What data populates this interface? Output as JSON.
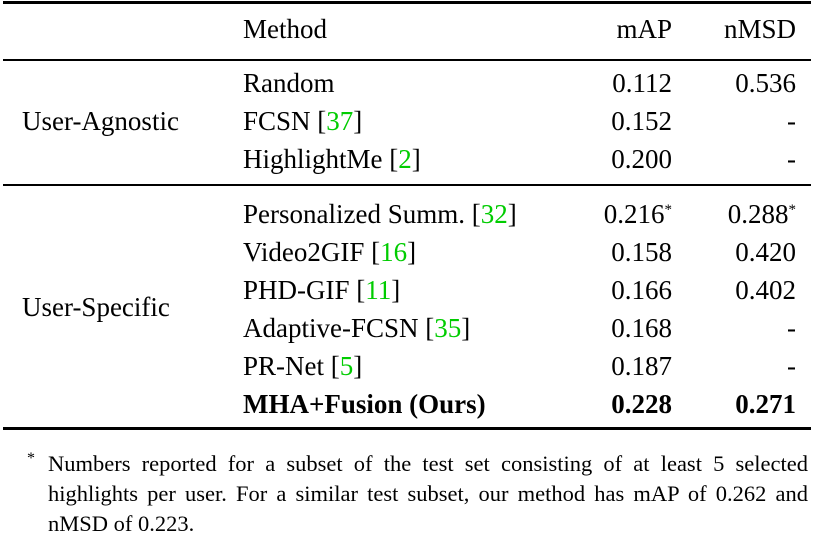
{
  "table": {
    "headers": {
      "method": "Method",
      "map": "mAP",
      "nmsd": "nMSD"
    },
    "groups": [
      {
        "label": "User-Agnostic",
        "rows": [
          {
            "method": "Random",
            "cite": "",
            "map": "0.112",
            "map_star": "",
            "nmsd": "0.536",
            "nmsd_star": ""
          },
          {
            "method": "FCSN",
            "cite": "37",
            "map": "0.152",
            "map_star": "",
            "nmsd": "-",
            "nmsd_star": ""
          },
          {
            "method": "HighlightMe",
            "cite": "2",
            "map": "0.200",
            "map_star": "",
            "nmsd": "-",
            "nmsd_star": ""
          }
        ]
      },
      {
        "label": "User-Specific",
        "rows": [
          {
            "method": "Personalized Summ.",
            "cite": "32",
            "map": "0.216",
            "map_star": "*",
            "nmsd": "0.288",
            "nmsd_star": "*"
          },
          {
            "method": "Video2GIF",
            "cite": "16",
            "map": "0.158",
            "map_star": "",
            "nmsd": "0.420",
            "nmsd_star": ""
          },
          {
            "method": "PHD-GIF",
            "cite": "11",
            "map": "0.166",
            "map_star": "",
            "nmsd": "0.402",
            "nmsd_star": ""
          },
          {
            "method": "Adaptive-FCSN",
            "cite": "35",
            "map": "0.168",
            "map_star": "",
            "nmsd": "-",
            "nmsd_star": ""
          },
          {
            "method": "PR-Net",
            "cite": "5",
            "map": "0.187",
            "map_star": "",
            "nmsd": "-",
            "nmsd_star": ""
          },
          {
            "method": "MHA+Fusion (Ours)",
            "cite": "",
            "map": "0.228",
            "map_star": "",
            "nmsd": "0.271",
            "nmsd_star": ""
          }
        ]
      }
    ],
    "citation_color": "#00cc00"
  },
  "footnote": {
    "marker": "*",
    "text": "Numbers reported for a subset of the test set consisting of at least 5 selected highlights per user. For a similar test subset, our method has mAP of 0.262 and nMSD of 0.223."
  }
}
